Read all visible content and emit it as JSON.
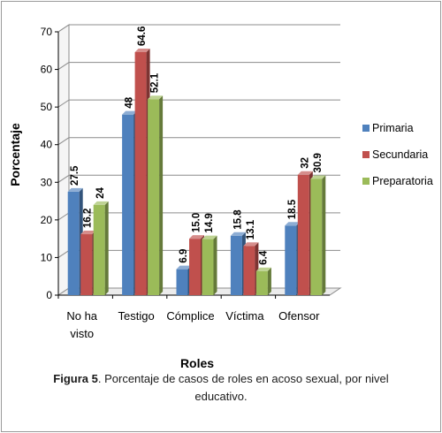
{
  "figure_caption": {
    "label": "Figura 5",
    "line1": ". Porcentaje de casos de roles en acoso sexual, por nivel",
    "line2": "educativo."
  },
  "chart_data": {
    "type": "bar",
    "style": "3d-clustered-column",
    "title": "",
    "xlabel": "Roles",
    "ylabel": "Porcentaje",
    "ylim": [
      0,
      70
    ],
    "yticks": [
      0,
      10,
      20,
      30,
      40,
      50,
      60,
      70
    ],
    "grid": true,
    "legend_position": "right",
    "categories": [
      "No ha visto",
      "Testigo",
      "Cómplice",
      "Víctima",
      "Ofensor"
    ],
    "category_lines": [
      [
        "No ha",
        "visto"
      ],
      [
        "Testigo"
      ],
      [
        "Cómplice"
      ],
      [
        "Víctima"
      ],
      [
        "Ofensor"
      ]
    ],
    "series": [
      {
        "name": "Primaria",
        "color": "#4f81bd",
        "values": [
          27.5,
          48,
          6.9,
          15.8,
          18.5
        ],
        "labels": [
          "27.5",
          "48",
          "6.9",
          "15.8",
          "18.5"
        ]
      },
      {
        "name": "Secundaria",
        "color": "#c0504d",
        "values": [
          16.2,
          64.6,
          15.0,
          13.1,
          32
        ],
        "labels": [
          "16.2",
          "64.6",
          "15.0",
          "13.1",
          "32"
        ]
      },
      {
        "name": "Preparatoria",
        "color": "#9bbb59",
        "values": [
          24,
          52.1,
          14.9,
          6.4,
          30.9
        ],
        "labels": [
          "24",
          "52.1",
          "14.9",
          "6.4",
          "30.9"
        ]
      }
    ]
  }
}
